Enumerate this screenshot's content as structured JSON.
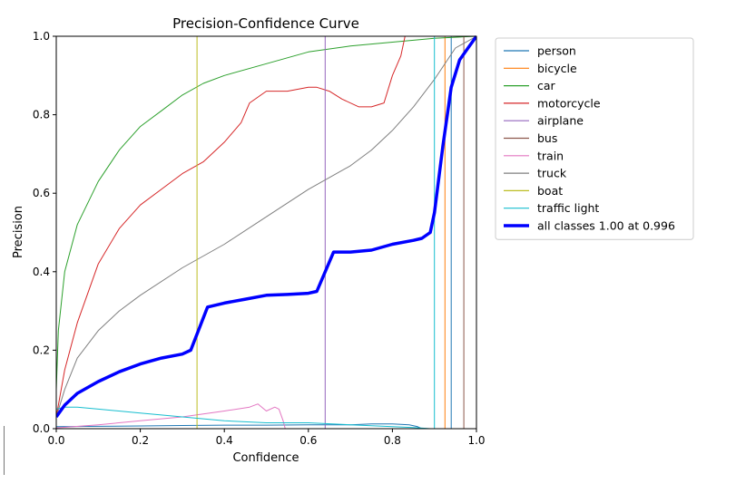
{
  "chart_data": {
    "type": "line",
    "title": "Precision-Confidence Curve",
    "xlabel": "Confidence",
    "ylabel": "Precision",
    "xlim": [
      0.0,
      1.0
    ],
    "ylim": [
      0.0,
      1.0
    ],
    "xticks": [
      "0.0",
      "0.2",
      "0.4",
      "0.6",
      "0.8",
      "1.0"
    ],
    "yticks": [
      "0.0",
      "0.2",
      "0.4",
      "0.6",
      "0.8",
      "1.0"
    ],
    "grid": false,
    "legend_position": "outside-right",
    "series": [
      {
        "name": "person",
        "color": "#1f77b4",
        "x": [
          0.0,
          0.1,
          0.2,
          0.3,
          0.4,
          0.5,
          0.6,
          0.7,
          0.75,
          0.8,
          0.84,
          0.86,
          0.87,
          0.94,
          0.94,
          1.0
        ],
        "y": [
          0.005,
          0.006,
          0.007,
          0.008,
          0.009,
          0.009,
          0.01,
          0.01,
          0.012,
          0.012,
          0.01,
          0.005,
          0.0,
          0.0,
          1.0,
          1.0
        ]
      },
      {
        "name": "bicycle",
        "color": "#ff7f0e",
        "x": [
          0.0,
          0.925,
          0.925,
          1.0
        ],
        "y": [
          0.0,
          0.0,
          1.0,
          1.0
        ]
      },
      {
        "name": "car",
        "color": "#2ca02c",
        "x": [
          0.0,
          0.005,
          0.02,
          0.05,
          0.1,
          0.15,
          0.2,
          0.25,
          0.3,
          0.35,
          0.4,
          0.5,
          0.6,
          0.7,
          0.8,
          0.9,
          1.0
        ],
        "y": [
          0.1,
          0.25,
          0.4,
          0.52,
          0.63,
          0.71,
          0.77,
          0.81,
          0.85,
          0.88,
          0.9,
          0.93,
          0.96,
          0.975,
          0.985,
          0.995,
          1.0
        ]
      },
      {
        "name": "motorcycle",
        "color": "#d62728",
        "x": [
          0.0,
          0.02,
          0.05,
          0.1,
          0.15,
          0.2,
          0.25,
          0.3,
          0.35,
          0.4,
          0.44,
          0.46,
          0.5,
          0.55,
          0.6,
          0.62,
          0.65,
          0.68,
          0.72,
          0.75,
          0.78,
          0.8,
          0.82,
          0.83,
          0.9,
          1.0
        ],
        "y": [
          0.03,
          0.15,
          0.27,
          0.42,
          0.51,
          0.57,
          0.61,
          0.65,
          0.68,
          0.73,
          0.78,
          0.83,
          0.86,
          0.86,
          0.87,
          0.87,
          0.86,
          0.84,
          0.82,
          0.82,
          0.83,
          0.9,
          0.95,
          1.0,
          1.0,
          1.0
        ]
      },
      {
        "name": "airplane",
        "color": "#9467bd",
        "x": [
          0.0,
          0.64,
          0.64,
          1.0
        ],
        "y": [
          0.0,
          0.0,
          1.0,
          1.0
        ]
      },
      {
        "name": "bus",
        "color": "#8c564b",
        "x": [
          0.0,
          0.97,
          0.97,
          1.0
        ],
        "y": [
          0.0,
          0.0,
          1.0,
          1.0
        ]
      },
      {
        "name": "train",
        "color": "#e377c2",
        "x": [
          0.0,
          0.1,
          0.2,
          0.3,
          0.4,
          0.46,
          0.48,
          0.5,
          0.52,
          0.53,
          0.54,
          0.545,
          0.55,
          1.0
        ],
        "y": [
          0.002,
          0.01,
          0.02,
          0.03,
          0.045,
          0.055,
          0.063,
          0.045,
          0.055,
          0.05,
          0.02,
          0.0,
          0.0,
          0.0
        ]
      },
      {
        "name": "truck",
        "color": "#7f7f7f",
        "x": [
          0.0,
          0.02,
          0.05,
          0.1,
          0.15,
          0.2,
          0.3,
          0.4,
          0.5,
          0.6,
          0.7,
          0.75,
          0.8,
          0.85,
          0.9,
          0.95,
          1.0
        ],
        "y": [
          0.03,
          0.1,
          0.18,
          0.25,
          0.3,
          0.34,
          0.41,
          0.47,
          0.54,
          0.61,
          0.67,
          0.71,
          0.76,
          0.82,
          0.89,
          0.97,
          1.0
        ]
      },
      {
        "name": "boat",
        "color": "#bcbd22",
        "x": [
          0.0,
          0.335,
          0.335,
          1.0
        ],
        "y": [
          0.0,
          0.0,
          1.0,
          1.0
        ]
      },
      {
        "name": "traffic light",
        "color": "#17becf",
        "x": [
          0.0,
          0.02,
          0.05,
          0.1,
          0.2,
          0.3,
          0.4,
          0.5,
          0.6,
          0.7,
          0.8,
          0.85,
          0.88,
          0.89,
          0.9,
          0.9,
          1.0
        ],
        "y": [
          0.05,
          0.055,
          0.055,
          0.05,
          0.04,
          0.03,
          0.02,
          0.015,
          0.015,
          0.01,
          0.005,
          0.003,
          0.001,
          0.0,
          0.0,
          1.0,
          1.0
        ]
      },
      {
        "name": "all classes 1.00 at 0.996",
        "color": "#0000ff",
        "bold": true,
        "x": [
          0.0,
          0.02,
          0.05,
          0.1,
          0.15,
          0.2,
          0.25,
          0.3,
          0.32,
          0.36,
          0.4,
          0.45,
          0.5,
          0.55,
          0.6,
          0.62,
          0.66,
          0.7,
          0.75,
          0.8,
          0.85,
          0.87,
          0.89,
          0.9,
          0.92,
          0.94,
          0.96,
          0.98,
          1.0
        ],
        "y": [
          0.03,
          0.06,
          0.09,
          0.12,
          0.145,
          0.165,
          0.18,
          0.19,
          0.2,
          0.31,
          0.32,
          0.33,
          0.34,
          0.342,
          0.345,
          0.35,
          0.45,
          0.45,
          0.455,
          0.47,
          0.48,
          0.485,
          0.5,
          0.55,
          0.72,
          0.87,
          0.94,
          0.97,
          1.0
        ]
      }
    ]
  }
}
